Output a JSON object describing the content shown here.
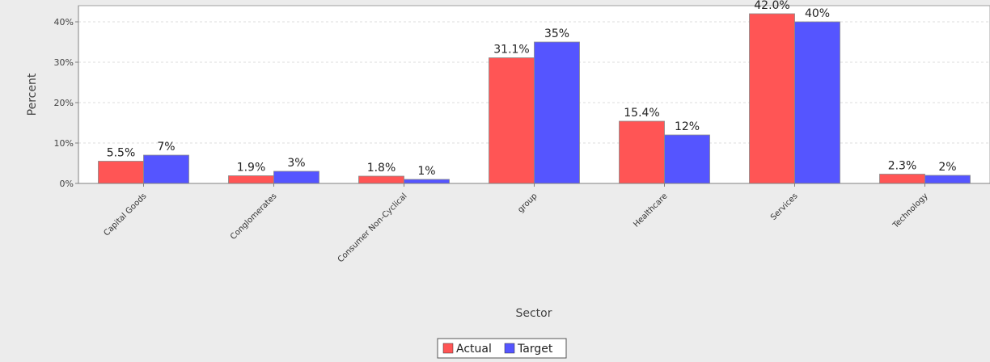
{
  "chart_data": {
    "type": "bar",
    "title": "",
    "xlabel": "Sector",
    "ylabel": "Percent",
    "categories": [
      "Capital Goods",
      "Conglomerates",
      "Consumer Non-Cyclical",
      "group",
      "Healthcare",
      "Services",
      "Technology"
    ],
    "series": [
      {
        "name": "Actual",
        "color": "#ff5555",
        "values": [
          5.5,
          1.9,
          1.8,
          31.1,
          15.4,
          42.0,
          2.3
        ],
        "labels": [
          "5.5%",
          "1.9%",
          "1.8%",
          "31.1%",
          "15.4%",
          "42.0%",
          "2.3%"
        ]
      },
      {
        "name": "Target",
        "color": "#5555ff",
        "values": [
          7,
          3,
          1,
          35,
          12,
          40,
          2
        ],
        "labels": [
          "7%",
          "3%",
          "1%",
          "35%",
          "12%",
          "40%",
          "2%"
        ]
      }
    ],
    "ylim": [
      0,
      44
    ],
    "yticks": [
      0,
      10,
      20,
      30,
      40
    ],
    "ytick_labels": [
      "0%",
      "10%",
      "20%",
      "30%",
      "40%"
    ],
    "grid": true,
    "legend_position": "bottom-center",
    "plot_background": "#ffffff",
    "page_background": "#ececec"
  }
}
